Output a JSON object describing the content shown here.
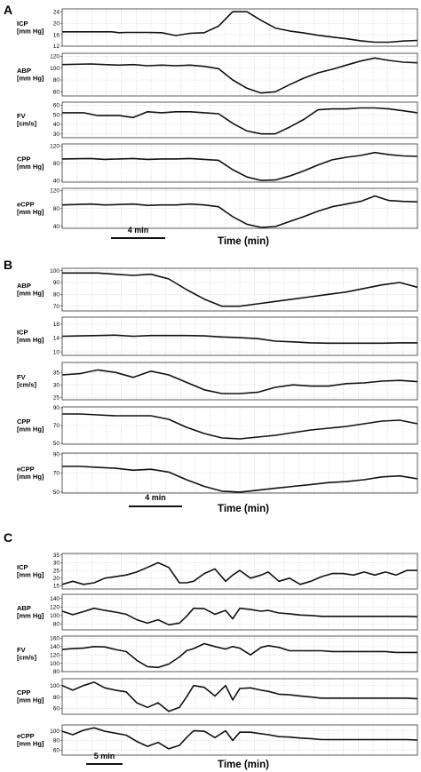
{
  "panels": [
    {
      "letter": "A",
      "scalebar": "4 min",
      "time_label": "Time (min)"
    },
    {
      "letter": "B",
      "scalebar": "4 min",
      "time_label": "Time (min)"
    },
    {
      "letter": "C",
      "scalebar": "5 min",
      "time_label": "Time (min)"
    }
  ],
  "chart_data": [
    {
      "panel": "A",
      "type": "line",
      "series_name": "ICP",
      "label": [
        "ICP",
        "[mm Hg]"
      ],
      "ylim": [
        12,
        25
      ],
      "yticks": [
        12,
        16,
        20,
        24
      ],
      "grid": true,
      "x": [
        0,
        4,
        8,
        10,
        12,
        14,
        16,
        18,
        20,
        22,
        24,
        28,
        32,
        36,
        40,
        44,
        48,
        52,
        56,
        60,
        64,
        68,
        72,
        76,
        80,
        84,
        88,
        92,
        96,
        100
      ],
      "values": [
        17,
        17,
        17,
        17,
        17,
        17,
        16.7,
        16.8,
        16.8,
        16.8,
        16.8,
        16.7,
        15.7,
        16.5,
        16.7,
        19,
        24,
        24,
        21,
        18.3,
        17.3,
        16.6,
        15.8,
        15.2,
        14.6,
        13.9,
        13.4,
        13.4,
        13.8,
        14
      ]
    },
    {
      "panel": "A",
      "type": "line",
      "series_name": "ABP",
      "label": [
        "ABP",
        "[mm Hg]"
      ],
      "ylim": [
        53,
        125
      ],
      "yticks": [
        60,
        80,
        100,
        120
      ],
      "grid": true,
      "x": [
        0,
        8,
        12,
        16,
        20,
        24,
        28,
        32,
        36,
        40,
        44,
        48,
        52,
        56,
        60,
        64,
        68,
        72,
        76,
        80,
        84,
        88,
        92,
        96,
        100
      ],
      "values": [
        106,
        107,
        106,
        105,
        106,
        104,
        105,
        104,
        105,
        103,
        99,
        80,
        66,
        58,
        60,
        72,
        83,
        92,
        98,
        105,
        112,
        117,
        113,
        110,
        109
      ]
    },
    {
      "panel": "A",
      "type": "line",
      "series_name": "FV",
      "label": [
        "FV",
        "[cm/s]"
      ],
      "ylim": [
        26,
        63
      ],
      "yticks": [
        30,
        40,
        50,
        60
      ],
      "grid": true,
      "x": [
        0,
        6,
        10,
        16,
        20,
        24,
        28,
        32,
        36,
        40,
        44,
        48,
        52,
        56,
        60,
        64,
        68,
        72,
        76,
        80,
        84,
        88,
        92,
        96,
        100
      ],
      "values": [
        52,
        52,
        49,
        49,
        47,
        53,
        52,
        53,
        53,
        52,
        51,
        41,
        33,
        30,
        30,
        37,
        45,
        55,
        56,
        56,
        57,
        57,
        56,
        54,
        52
      ]
    },
    {
      "panel": "A",
      "type": "line",
      "series_name": "CPP",
      "label": [
        "CPP",
        "[mm Hg]"
      ],
      "ylim": [
        36,
        125
      ],
      "yticks": [
        40,
        80,
        120
      ],
      "grid": true,
      "x": [
        0,
        8,
        12,
        16,
        20,
        24,
        28,
        32,
        36,
        40,
        44,
        48,
        52,
        56,
        60,
        64,
        68,
        72,
        76,
        80,
        84,
        88,
        92,
        96,
        100
      ],
      "values": [
        90,
        91,
        89,
        90,
        91,
        89,
        90,
        90,
        91,
        89,
        87,
        65,
        48,
        40,
        41,
        50,
        62,
        76,
        88,
        94,
        98,
        105,
        100,
        97,
        96
      ]
    },
    {
      "panel": "A",
      "type": "line",
      "series_name": "eCPP",
      "label": [
        "eCPP",
        "[mm Hg]"
      ],
      "ylim": [
        36,
        125
      ],
      "yticks": [
        40,
        80,
        120
      ],
      "grid": true,
      "x": [
        0,
        8,
        12,
        16,
        20,
        24,
        28,
        32,
        36,
        40,
        44,
        48,
        52,
        56,
        60,
        64,
        68,
        72,
        76,
        80,
        84,
        88,
        92,
        96,
        100
      ],
      "values": [
        88,
        90,
        88,
        89,
        90,
        87,
        88,
        88,
        90,
        88,
        84,
        62,
        45,
        38,
        40,
        51,
        62,
        74,
        84,
        90,
        96,
        108,
        98,
        96,
        95
      ]
    },
    {
      "panel": "B",
      "type": "line",
      "series_name": "ABP",
      "label": [
        "ABP",
        "[mm Hg]"
      ],
      "ylim": [
        66,
        102
      ],
      "yticks": [
        70,
        80,
        90,
        100
      ],
      "grid": true,
      "x": [
        0,
        5,
        10,
        15,
        20,
        25,
        30,
        35,
        40,
        45,
        50,
        55,
        60,
        65,
        70,
        75,
        80,
        85,
        90,
        95,
        100
      ],
      "values": [
        98,
        98,
        98,
        97,
        96,
        97,
        93,
        84,
        76,
        70,
        70,
        72,
        74,
        76,
        78,
        80,
        82,
        85,
        88,
        90,
        86
      ]
    },
    {
      "panel": "B",
      "type": "line",
      "series_name": "ICP",
      "label": [
        "ICP",
        "[mm Hg]"
      ],
      "ylim": [
        9,
        20
      ],
      "yticks": [
        10,
        14,
        18
      ],
      "grid": true,
      "x": [
        0,
        5,
        10,
        15,
        20,
        25,
        30,
        35,
        40,
        45,
        50,
        55,
        60,
        65,
        70,
        75,
        80,
        85,
        90,
        95,
        100
      ],
      "values": [
        14.5,
        14.6,
        14.7,
        14.8,
        14.5,
        14.7,
        14.7,
        14.7,
        14.6,
        14.3,
        14.1,
        13.8,
        13.1,
        12.9,
        12.6,
        12.5,
        12.5,
        12.5,
        12.5,
        12.6,
        12.6
      ]
    },
    {
      "panel": "B",
      "type": "line",
      "series_name": "FV",
      "label": [
        "FV",
        "[cm/s]"
      ],
      "ylim": [
        24,
        39
      ],
      "yticks": [
        25,
        30,
        35
      ],
      "grid": true,
      "x": [
        0,
        5,
        10,
        15,
        20,
        25,
        30,
        35,
        40,
        45,
        50,
        55,
        60,
        65,
        70,
        75,
        80,
        85,
        90,
        95,
        100
      ],
      "values": [
        34,
        34.5,
        36,
        35,
        33,
        35.5,
        34,
        31,
        28,
        26.5,
        26.5,
        27,
        29,
        30,
        29.5,
        29.5,
        30.5,
        30.8,
        31.5,
        31.8,
        31.3
      ]
    },
    {
      "panel": "B",
      "type": "line",
      "series_name": "CPP",
      "label": [
        "CPP",
        "[mm Hg]"
      ],
      "ylim": [
        49,
        91
      ],
      "yticks": [
        50,
        70,
        90
      ],
      "grid": true,
      "x": [
        0,
        5,
        10,
        15,
        20,
        25,
        30,
        35,
        40,
        45,
        50,
        55,
        60,
        65,
        70,
        75,
        80,
        85,
        90,
        95,
        100
      ],
      "values": [
        83,
        83,
        82,
        81,
        81,
        81,
        77,
        68,
        61,
        56,
        55,
        57,
        59,
        62,
        65,
        67,
        69,
        72,
        75,
        76,
        72
      ]
    },
    {
      "panel": "B",
      "type": "line",
      "series_name": "eCPP",
      "label": [
        "eCPP",
        "[mm Hg]"
      ],
      "ylim": [
        49,
        91
      ],
      "yticks": [
        50,
        70,
        90
      ],
      "grid": true,
      "x": [
        0,
        5,
        10,
        15,
        20,
        25,
        30,
        35,
        40,
        45,
        50,
        55,
        60,
        65,
        70,
        75,
        80,
        85,
        90,
        95,
        100
      ],
      "values": [
        77,
        77,
        76,
        75,
        73,
        74,
        71,
        63,
        56,
        51,
        50,
        52,
        54,
        56,
        58,
        60,
        61,
        63,
        66,
        67,
        64
      ]
    },
    {
      "panel": "C",
      "type": "line",
      "series_name": "ICP",
      "label": [
        "ICP",
        "[mm Hg]"
      ],
      "ylim": [
        13,
        36
      ],
      "yticks": [
        15,
        20,
        25,
        30,
        35
      ],
      "grid": true,
      "x": [
        0,
        3,
        6,
        9,
        12,
        15,
        18,
        21,
        24,
        27,
        30,
        33,
        35,
        37,
        40,
        43,
        46,
        48,
        50,
        53,
        56,
        58,
        61,
        64,
        67,
        70,
        73,
        76,
        79,
        82,
        85,
        88,
        91,
        94,
        97,
        100
      ],
      "values": [
        16,
        18,
        16,
        17,
        20,
        21,
        22,
        24,
        27,
        30,
        27,
        17,
        17,
        18,
        23,
        26,
        18,
        22,
        25,
        20,
        22,
        24,
        18,
        20,
        16,
        18,
        21,
        23,
        23,
        22,
        24,
        22,
        24,
        22,
        25,
        25
      ]
    },
    {
      "panel": "C",
      "type": "line",
      "series_name": "ABP",
      "label": [
        "ABP",
        "[mm Hg]"
      ],
      "ylim": [
        66,
        150
      ],
      "yticks": [
        80,
        100,
        120,
        140
      ],
      "grid": true,
      "x": [
        0,
        3,
        6,
        9,
        12,
        15,
        18,
        21,
        24,
        27,
        30,
        33,
        35,
        37,
        40,
        43,
        46,
        48,
        50,
        53,
        56,
        58,
        61,
        64,
        67,
        70,
        73,
        76,
        79,
        82,
        85,
        88,
        91,
        94,
        97,
        100
      ],
      "values": [
        110,
        102,
        109,
        117,
        112,
        108,
        103,
        90,
        82,
        90,
        78,
        82,
        98,
        117,
        116,
        103,
        112,
        92,
        117,
        114,
        110,
        112,
        106,
        104,
        101,
        100,
        98,
        98,
        98,
        98,
        98,
        98,
        98,
        98,
        98,
        97
      ]
    },
    {
      "panel": "C",
      "type": "line",
      "series_name": "FV",
      "label": [
        "FV",
        "[cm/s]"
      ],
      "ylim": [
        80,
        165
      ],
      "yticks": [
        80,
        100,
        120,
        140,
        160
      ],
      "grid": true,
      "x": [
        0,
        3,
        6,
        9,
        12,
        15,
        18,
        21,
        24,
        27,
        30,
        33,
        35,
        37,
        40,
        43,
        46,
        48,
        50,
        53,
        56,
        58,
        61,
        64,
        67,
        70,
        73,
        76,
        79,
        82,
        85,
        88,
        91,
        94,
        97,
        100
      ],
      "values": [
        133,
        135,
        136,
        140,
        139,
        133,
        128,
        107,
        92,
        90,
        98,
        115,
        130,
        135,
        147,
        140,
        134,
        140,
        136,
        120,
        138,
        142,
        138,
        130,
        130,
        130,
        130,
        128,
        128,
        128,
        128,
        128,
        128,
        126,
        126,
        126
      ]
    },
    {
      "panel": "C",
      "type": "line",
      "series_name": "CPP",
      "label": [
        "CPP",
        "[mm Hg]"
      ],
      "ylim": [
        50,
        112
      ],
      "yticks": [
        60,
        80,
        100
      ],
      "grid": true,
      "x": [
        0,
        3,
        6,
        9,
        12,
        15,
        18,
        21,
        24,
        27,
        30,
        33,
        35,
        37,
        40,
        43,
        46,
        48,
        50,
        53,
        56,
        58,
        61,
        64,
        67,
        70,
        73,
        76,
        79,
        82,
        85,
        88,
        91,
        94,
        97,
        100
      ],
      "values": [
        100,
        92,
        100,
        106,
        96,
        92,
        89,
        70,
        62,
        70,
        55,
        62,
        80,
        100,
        97,
        82,
        100,
        75,
        95,
        96,
        92,
        90,
        85,
        84,
        82,
        80,
        78,
        78,
        78,
        78,
        78,
        78,
        78,
        78,
        78,
        77
      ]
    },
    {
      "panel": "C",
      "type": "line",
      "series_name": "eCPP",
      "label": [
        "eCPP",
        "[mm Hg]"
      ],
      "ylim": [
        50,
        112
      ],
      "yticks": [
        60,
        80,
        100
      ],
      "grid": true,
      "x": [
        0,
        3,
        6,
        9,
        12,
        15,
        18,
        21,
        24,
        27,
        30,
        33,
        35,
        37,
        40,
        43,
        46,
        48,
        50,
        53,
        56,
        58,
        61,
        64,
        67,
        70,
        73,
        76,
        79,
        82,
        85,
        88,
        91,
        94,
        97,
        100
      ],
      "values": [
        99,
        92,
        101,
        106,
        99,
        95,
        91,
        78,
        68,
        76,
        63,
        70,
        86,
        100,
        99,
        86,
        100,
        80,
        97,
        97,
        94,
        92,
        88,
        87,
        85,
        84,
        82,
        82,
        82,
        82,
        82,
        82,
        82,
        82,
        82,
        81
      ]
    }
  ]
}
